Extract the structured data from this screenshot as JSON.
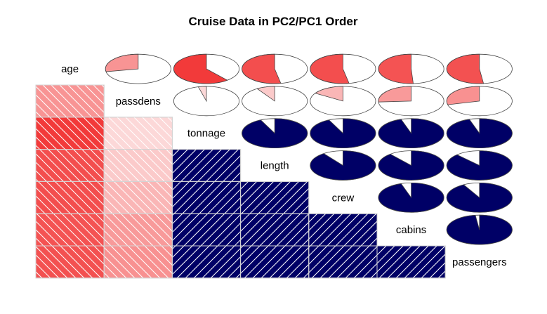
{
  "chart_data": {
    "type": "heatmap",
    "title": "Cruise Data in PC2/PC1 Order",
    "variables": [
      "age",
      "passdens",
      "tonnage",
      "length",
      "crew",
      "cabins",
      "passengers"
    ],
    "matrix": [
      [
        1.0,
        -0.28,
        -0.61,
        -0.53,
        -0.53,
        -0.51,
        -0.52
      ],
      [
        -0.28,
        1.0,
        -0.04,
        -0.09,
        -0.16,
        -0.26,
        -0.29
      ],
      [
        -0.61,
        -0.04,
        1.0,
        0.93,
        0.93,
        0.95,
        0.95
      ],
      [
        -0.53,
        -0.09,
        0.93,
        1.0,
        0.9,
        0.89,
        0.88
      ],
      [
        -0.53,
        -0.16,
        0.93,
        0.9,
        1.0,
        0.95,
        0.92
      ],
      [
        -0.51,
        -0.26,
        0.95,
        0.89,
        0.95,
        1.0,
        0.98
      ],
      [
        -0.52,
        -0.29,
        0.95,
        0.88,
        0.92,
        0.98,
        1.0
      ]
    ],
    "lower_panel": "shade",
    "upper_panel": "pie",
    "diagonal": "labels",
    "colors": {
      "positive": "#000066",
      "negative_strong": "#f23a3a",
      "negative_weak": "#fde3e3",
      "grid_line": "#d3d3d3",
      "outline": "#444444"
    }
  }
}
